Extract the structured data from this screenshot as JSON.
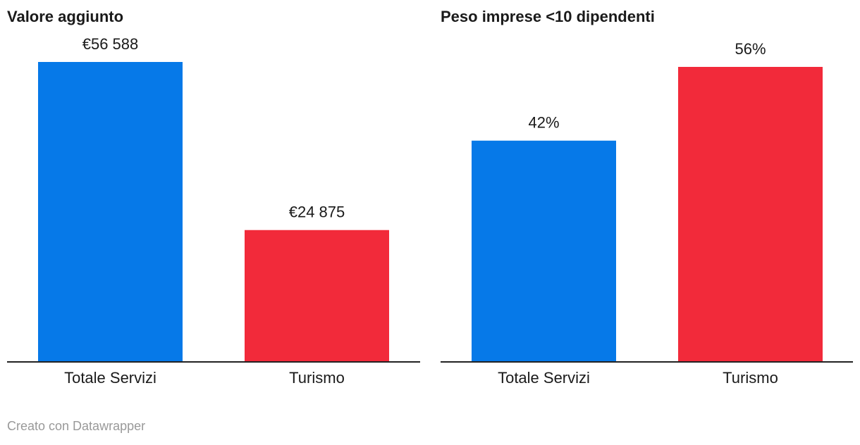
{
  "chart_data": [
    {
      "type": "bar",
      "title": "Valore aggiunto",
      "categories": [
        "Totale Servizi",
        "Turismo"
      ],
      "values": [
        56588,
        24875
      ],
      "value_labels": [
        "€56 588",
        "€24 875"
      ],
      "colors": [
        "#0679e8",
        "#f22a3a"
      ],
      "ylim": [
        0,
        56588
      ]
    },
    {
      "type": "bar",
      "title": "Peso imprese <10 dipendenti",
      "categories": [
        "Totale Servizi",
        "Turismo"
      ],
      "values": [
        42,
        56
      ],
      "value_labels": [
        "42%",
        "56%"
      ],
      "colors": [
        "#0679e8",
        "#f22a3a"
      ],
      "ylim": [
        0,
        56
      ]
    }
  ],
  "credit": "Creato con Datawrapper"
}
